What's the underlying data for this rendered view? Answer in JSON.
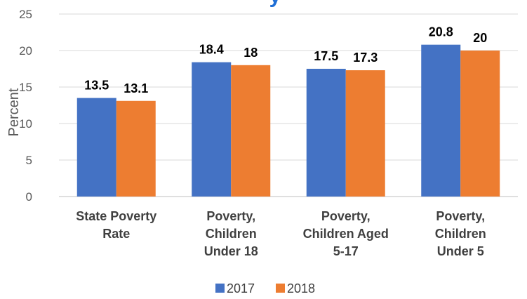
{
  "chart_data": {
    "type": "bar",
    "title": "y",
    "ylabel": "Percent",
    "xlabel": "",
    "ylim": [
      0,
      25
    ],
    "yticks": [
      0,
      5,
      10,
      15,
      20,
      25
    ],
    "grid": true,
    "legend_position": "bottom",
    "categories": [
      [
        "State Poverty",
        "Rate"
      ],
      [
        "Poverty,",
        "Children",
        "Under 18"
      ],
      [
        "Poverty,",
        "Children Aged",
        "5-17"
      ],
      [
        "Poverty,",
        "Children",
        "Under 5"
      ]
    ],
    "series": [
      {
        "name": "2017",
        "color": "#4472C4",
        "values": [
          13.5,
          18.4,
          17.5,
          20.8
        ]
      },
      {
        "name": "2018",
        "color": "#ED7D31",
        "values": [
          13.1,
          18,
          17.3,
          20
        ]
      }
    ],
    "title_color": "#1F6FD6"
  }
}
